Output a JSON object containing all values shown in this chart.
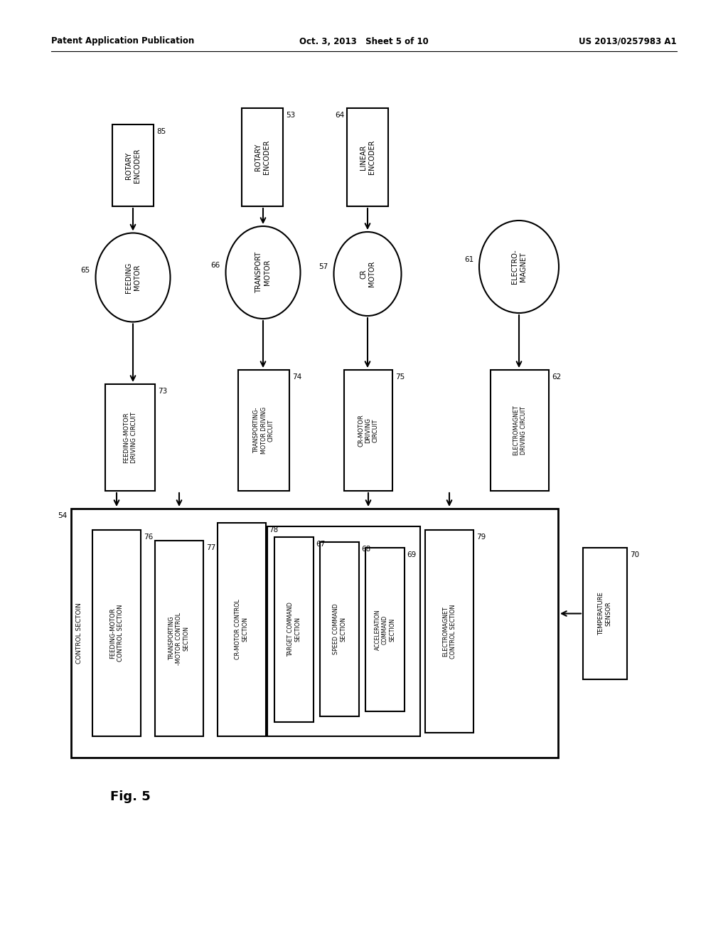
{
  "bg_color": "#ffffff",
  "header_left": "Patent Application Publication",
  "header_center": "Oct. 3, 2013   Sheet 5 of 10",
  "header_right": "US 2013/0257983 A1",
  "fig_label": "Fig. 5"
}
